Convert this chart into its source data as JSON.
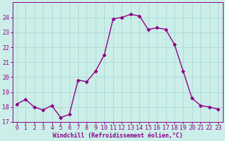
{
  "x": [
    0,
    1,
    2,
    3,
    4,
    5,
    6,
    7,
    8,
    9,
    10,
    11,
    12,
    13,
    14,
    15,
    16,
    17,
    18,
    19,
    20,
    21,
    22,
    23
  ],
  "y": [
    18.2,
    18.5,
    18.0,
    17.8,
    18.1,
    17.3,
    17.5,
    19.8,
    19.7,
    20.4,
    21.5,
    23.9,
    24.0,
    24.2,
    24.1,
    23.2,
    23.3,
    23.2,
    22.2,
    20.4,
    18.6,
    18.1,
    18.0,
    17.85
  ],
  "line_color": "#8b008b",
  "marker": "D",
  "marker_size": 2.5,
  "background_color": "#cceee8",
  "grid_color": "#aad8d2",
  "xlabel": "Windchill (Refroidissement éolien,°C)",
  "xlabel_color": "#8b008b",
  "tick_color": "#8b008b",
  "label_color": "#8b008b",
  "ylim": [
    17,
    25
  ],
  "xlim": [
    -0.5,
    23.5
  ],
  "yticks": [
    17,
    18,
    19,
    20,
    21,
    22,
    23,
    24
  ],
  "xticks": [
    0,
    1,
    2,
    3,
    4,
    5,
    6,
    7,
    8,
    9,
    10,
    11,
    12,
    13,
    14,
    15,
    16,
    17,
    18,
    19,
    20,
    21,
    22,
    23
  ],
  "line_width": 1.0,
  "fig_bg_color": "#cceee8",
  "tick_fontsize": 6,
  "xlabel_fontsize": 6
}
